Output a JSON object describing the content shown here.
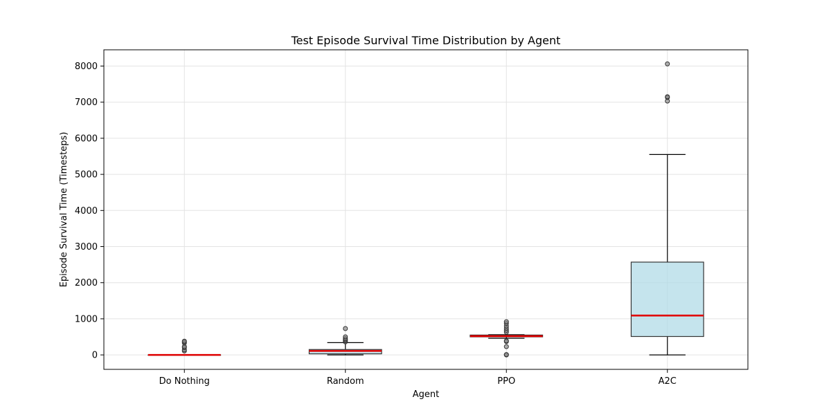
{
  "chart_data": {
    "type": "box",
    "title": "Test Episode Survival Time Distribution by Agent",
    "xlabel": "Agent",
    "ylabel": "Episode Survival Time (Timesteps)",
    "ylim": [
      -400,
      8450
    ],
    "yticks": [
      0,
      1000,
      2000,
      3000,
      4000,
      5000,
      6000,
      7000,
      8000
    ],
    "grid": true,
    "categories": [
      "Do Nothing",
      "Random",
      "PPO",
      "A2C"
    ],
    "boxes": [
      {
        "name": "Do Nothing",
        "whisker_low": 0,
        "q1": 0,
        "median": 0,
        "q3": 0,
        "whisker_high": 0,
        "outliers": [
          110,
          140,
          200,
          230,
          330,
          360,
          380
        ]
      },
      {
        "name": "Random",
        "whisker_low": 0,
        "q1": 30,
        "median": 110,
        "q3": 150,
        "whisker_high": 340,
        "outliers": [
          360,
          390,
          420,
          450,
          500,
          730
        ]
      },
      {
        "name": "PPO",
        "whisker_low": 460,
        "q1": 500,
        "median": 520,
        "q3": 550,
        "whisker_high": 560,
        "outliers": [
          0,
          10,
          230,
          370,
          390,
          630,
          680,
          740,
          800,
          870,
          920
        ]
      },
      {
        "name": "A2C",
        "whisker_low": 0,
        "q1": 510,
        "median": 1090,
        "q3": 2570,
        "whisker_high": 5550,
        "outliers": [
          7030,
          7130,
          7150,
          8060
        ]
      }
    ],
    "colors": {
      "box_fill": "#add8e6",
      "median": "#e00000",
      "whisker": "#000000",
      "outlier": "#808080",
      "grid": "#e3e3e3"
    }
  }
}
